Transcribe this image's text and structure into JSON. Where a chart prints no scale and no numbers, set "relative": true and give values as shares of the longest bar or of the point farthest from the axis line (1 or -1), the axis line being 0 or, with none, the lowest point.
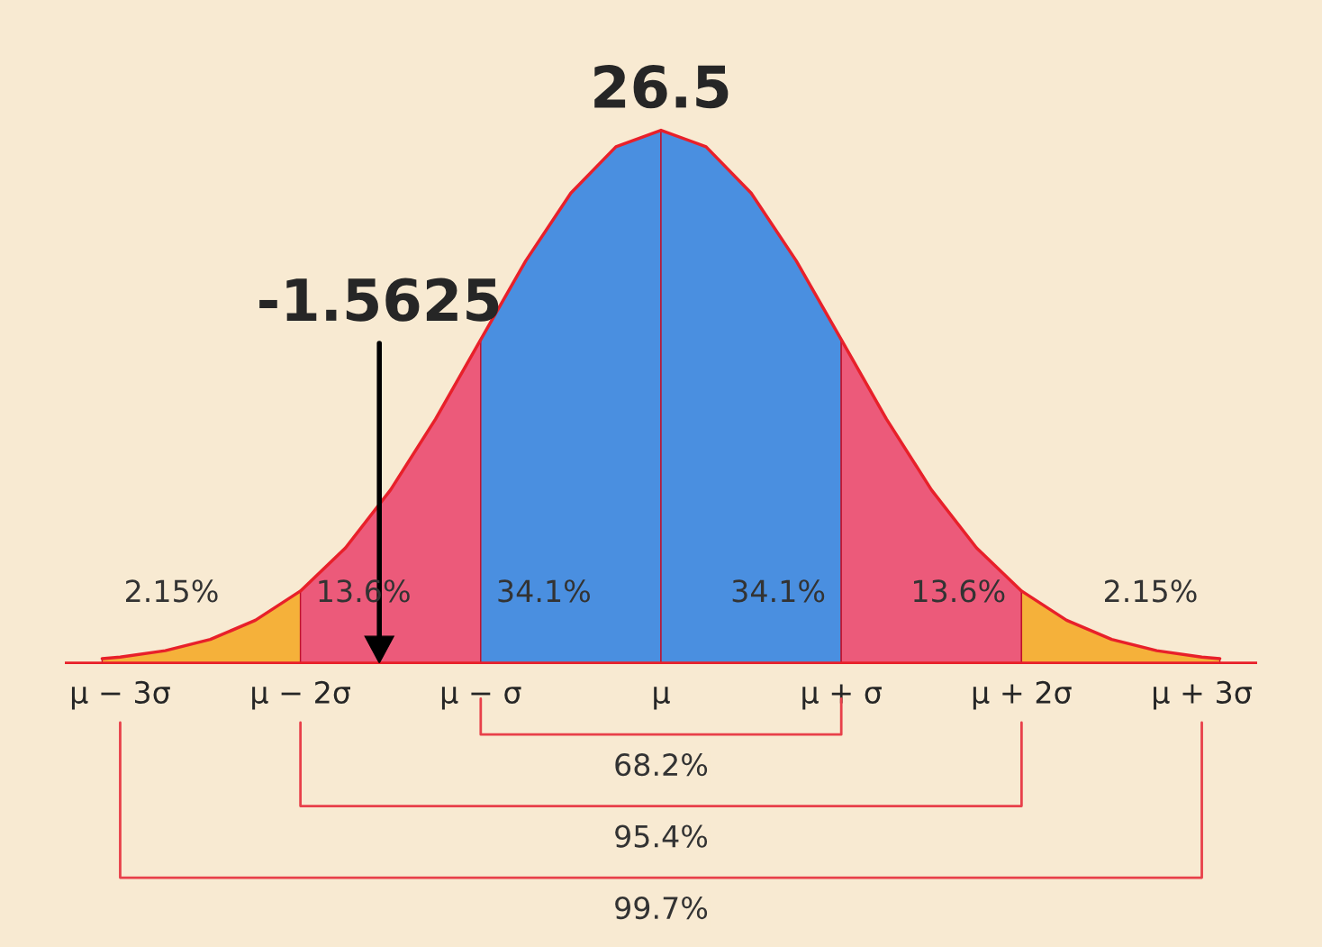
{
  "chart_data": {
    "type": "area",
    "relative": true,
    "xlim": [
      -3.3,
      3.3
    ],
    "xticks": [
      {
        "value": -3,
        "label": "μ − 3σ"
      },
      {
        "value": -2,
        "label": "μ − 2σ"
      },
      {
        "value": -1,
        "label": "μ − σ"
      },
      {
        "value": 0,
        "label": "μ"
      },
      {
        "value": 1,
        "label": "μ + σ"
      },
      {
        "value": 2,
        "label": "μ + 2σ"
      },
      {
        "value": 3,
        "label": "μ + 3σ"
      }
    ],
    "series": [
      {
        "color": "#f5b13a",
        "x": [
          -3.1,
          -3,
          -2.75,
          -2.5,
          -2.25,
          -2
        ],
        "values": [
          0.008,
          0.011,
          0.023,
          0.044,
          0.08,
          0.135
        ]
      },
      {
        "color": "#ec5a7a",
        "x": [
          -2,
          -1.75,
          -1.5,
          -1.25,
          -1
        ],
        "values": [
          0.135,
          0.216,
          0.325,
          0.458,
          0.607
        ]
      },
      {
        "color": "#4a8fe0",
        "x": [
          -1,
          -0.75,
          -0.5,
          -0.25,
          0
        ],
        "values": [
          0.607,
          0.755,
          0.882,
          0.969,
          1
        ]
      },
      {
        "color": "#4a8fe0",
        "x": [
          0,
          0.25,
          0.5,
          0.75,
          1
        ],
        "values": [
          1,
          0.969,
          0.882,
          0.755,
          0.607
        ]
      },
      {
        "color": "#ec5a7a",
        "x": [
          1,
          1.25,
          1.5,
          1.75,
          2
        ],
        "values": [
          0.607,
          0.458,
          0.325,
          0.216,
          0.135
        ]
      },
      {
        "color": "#f5b13a",
        "x": [
          2,
          2.25,
          2.5,
          2.75,
          3,
          3.1
        ],
        "values": [
          0.135,
          0.08,
          0.044,
          0.023,
          0.011,
          0.008
        ]
      },
      {
        "type": "line",
        "color": "#e8202a",
        "x": [
          -3.1,
          -3,
          -2.75,
          -2.5,
          -2.25,
          -2,
          -1.75,
          -1.5,
          -1.25,
          -1,
          -0.75,
          -0.5,
          -0.25,
          0,
          0.25,
          0.5,
          0.75,
          1,
          1.25,
          1.5,
          1.75,
          2,
          2.25,
          2.5,
          2.75,
          3,
          3.1
        ],
        "values": [
          0.008,
          0.011,
          0.023,
          0.044,
          0.08,
          0.135,
          0.216,
          0.325,
          0.458,
          0.607,
          0.755,
          0.882,
          0.969,
          1,
          0.969,
          0.882,
          0.755,
          0.607,
          0.458,
          0.325,
          0.216,
          0.135,
          0.08,
          0.044,
          0.023,
          0.011,
          0.008
        ]
      }
    ],
    "ref_lines": [
      {
        "axis": "x",
        "value": -1.5625,
        "label": "-1.5625",
        "color": "#000000"
      }
    ],
    "annotations": [
      "2.15%",
      "13.6%",
      "34.1%",
      "34.1%",
      "13.6%",
      "2.15%",
      "68.2%",
      "95.4%",
      "99.7%",
      {
        "text": "26.5",
        "x": 0,
        "y": 1
      }
    ]
  }
}
